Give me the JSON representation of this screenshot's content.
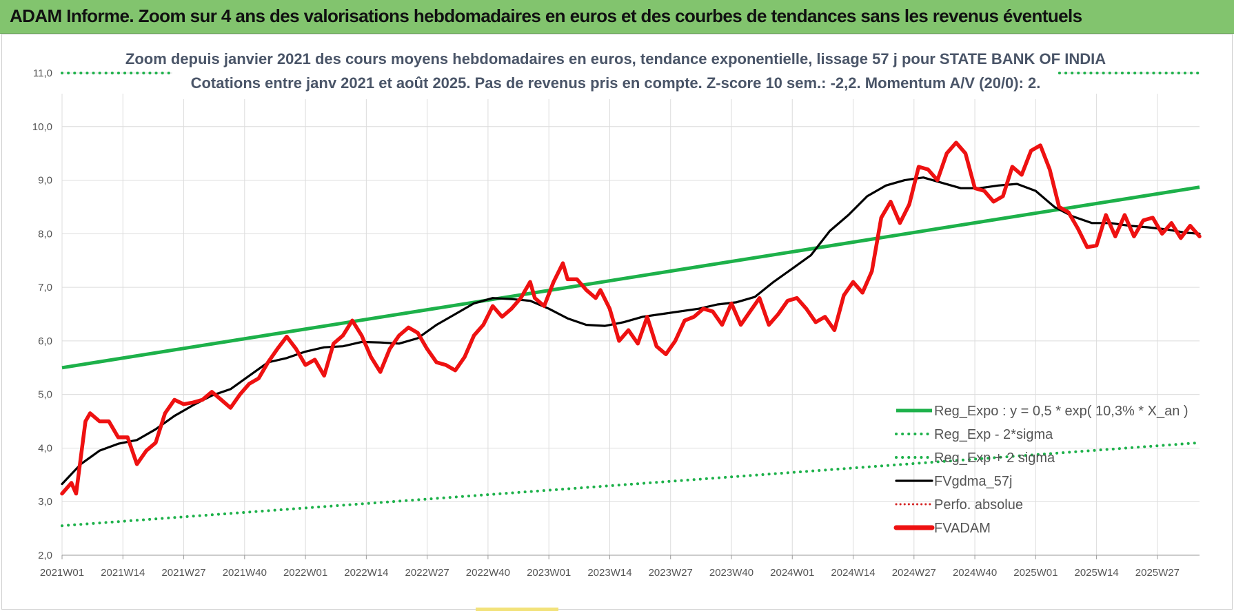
{
  "header": {
    "title": "ADAM Informe. Zoom sur 4 ans des valorisations hebdomadaires en euros et des courbes de tendances sans les revenus éventuels"
  },
  "colors": {
    "header_bg": "#82c46e",
    "reg_expo": "#1db14a",
    "fvgdma": "#000000",
    "fvadam": "#ee1111",
    "perfo": "#d42020"
  },
  "chart_data": {
    "type": "line",
    "title": "Zoom depuis janvier 2021 des cours moyens hebdomadaires en euros, tendance exponentielle, lissage 57 j pour STATE BANK OF INDIA",
    "subtitle": "Cotations entre janv 2021 et août 2025.  Pas de revenus pris en compte. Z-score 10 sem.: -2,2. Momentum A/V (20/0): 2.",
    "xlabel": "",
    "ylabel": "",
    "ylim": [
      2.0,
      11.0
    ],
    "yticks": [
      "2,0",
      "3,0",
      "4,0",
      "5,0",
      "6,0",
      "7,0",
      "8,0",
      "9,0",
      "10,0",
      "11,0"
    ],
    "x_tick_labels": [
      "2021W01",
      "2021W14",
      "2021W27",
      "2021W40",
      "2022W01",
      "2022W14",
      "2022W27",
      "2022W40",
      "2023W01",
      "2023W14",
      "2023W27",
      "2023W40",
      "2024W01",
      "2024W14",
      "2024W27",
      "2024W40",
      "2025W01",
      "2025W14",
      "2025W27"
    ],
    "grid": true,
    "legend_position": "bottom-right",
    "series": [
      {
        "name": "Reg_Expo : y = 0,5 * exp( 10,3% *  X_an )",
        "style": "solid-thick",
        "points": [
          [
            0,
            5.5
          ],
          [
            243,
            8.87
          ]
        ]
      },
      {
        "name": "Reg_Exp - 2*sigma",
        "style": "dotted",
        "points": [
          [
            0,
            2.55
          ],
          [
            243,
            4.1
          ]
        ]
      },
      {
        "name": "Reg_Exp + 2 sigma",
        "style": "dotted",
        "points": [
          [
            0,
            11.0
          ],
          [
            243,
            11.0
          ]
        ]
      },
      {
        "name": "FVgdma_57j",
        "style": "solid",
        "points": [
          [
            0,
            3.33
          ],
          [
            4,
            3.7
          ],
          [
            8,
            3.95
          ],
          [
            12,
            4.08
          ],
          [
            16,
            4.15
          ],
          [
            20,
            4.35
          ],
          [
            24,
            4.6
          ],
          [
            28,
            4.8
          ],
          [
            32,
            4.98
          ],
          [
            36,
            5.1
          ],
          [
            40,
            5.35
          ],
          [
            44,
            5.6
          ],
          [
            48,
            5.68
          ],
          [
            52,
            5.8
          ],
          [
            56,
            5.88
          ],
          [
            60,
            5.9
          ],
          [
            64,
            5.98
          ],
          [
            68,
            5.97
          ],
          [
            72,
            5.95
          ],
          [
            76,
            6.05
          ],
          [
            80,
            6.3
          ],
          [
            84,
            6.5
          ],
          [
            88,
            6.7
          ],
          [
            92,
            6.8
          ],
          [
            96,
            6.78
          ],
          [
            100,
            6.75
          ],
          [
            104,
            6.6
          ],
          [
            108,
            6.42
          ],
          [
            112,
            6.3
          ],
          [
            116,
            6.28
          ],
          [
            120,
            6.35
          ],
          [
            124,
            6.45
          ],
          [
            128,
            6.5
          ],
          [
            132,
            6.55
          ],
          [
            136,
            6.6
          ],
          [
            140,
            6.68
          ],
          [
            144,
            6.72
          ],
          [
            148,
            6.82
          ],
          [
            152,
            7.1
          ],
          [
            156,
            7.35
          ],
          [
            160,
            7.6
          ],
          [
            164,
            8.05
          ],
          [
            168,
            8.35
          ],
          [
            172,
            8.7
          ],
          [
            176,
            8.9
          ],
          [
            180,
            9.0
          ],
          [
            184,
            9.05
          ],
          [
            188,
            8.95
          ],
          [
            192,
            8.85
          ],
          [
            196,
            8.85
          ],
          [
            200,
            8.9
          ],
          [
            204,
            8.93
          ],
          [
            208,
            8.8
          ],
          [
            212,
            8.5
          ],
          [
            216,
            8.32
          ],
          [
            220,
            8.2
          ],
          [
            224,
            8.2
          ],
          [
            228,
            8.15
          ],
          [
            232,
            8.12
          ],
          [
            236,
            8.08
          ],
          [
            240,
            8.02
          ],
          [
            243,
            8.0
          ]
        ]
      },
      {
        "name": "Perfo. absolue",
        "style": "dotted",
        "points": []
      },
      {
        "name": "FVADAM",
        "style": "solid-thick",
        "points": [
          [
            0,
            3.15
          ],
          [
            2,
            3.35
          ],
          [
            3,
            3.15
          ],
          [
            5,
            4.5
          ],
          [
            6,
            4.65
          ],
          [
            8,
            4.5
          ],
          [
            10,
            4.5
          ],
          [
            12,
            4.2
          ],
          [
            14,
            4.2
          ],
          [
            16,
            3.7
          ],
          [
            18,
            3.95
          ],
          [
            20,
            4.1
          ],
          [
            22,
            4.65
          ],
          [
            24,
            4.9
          ],
          [
            26,
            4.82
          ],
          [
            28,
            4.85
          ],
          [
            30,
            4.9
          ],
          [
            32,
            5.05
          ],
          [
            34,
            4.9
          ],
          [
            36,
            4.75
          ],
          [
            38,
            5.0
          ],
          [
            40,
            5.2
          ],
          [
            42,
            5.3
          ],
          [
            44,
            5.6
          ],
          [
            46,
            5.85
          ],
          [
            48,
            6.08
          ],
          [
            50,
            5.85
          ],
          [
            52,
            5.55
          ],
          [
            54,
            5.65
          ],
          [
            56,
            5.35
          ],
          [
            58,
            5.95
          ],
          [
            60,
            6.1
          ],
          [
            62,
            6.38
          ],
          [
            64,
            6.1
          ],
          [
            66,
            5.7
          ],
          [
            68,
            5.42
          ],
          [
            70,
            5.85
          ],
          [
            72,
            6.1
          ],
          [
            74,
            6.25
          ],
          [
            76,
            6.15
          ],
          [
            78,
            5.85
          ],
          [
            80,
            5.6
          ],
          [
            82,
            5.55
          ],
          [
            84,
            5.45
          ],
          [
            86,
            5.7
          ],
          [
            88,
            6.1
          ],
          [
            90,
            6.3
          ],
          [
            92,
            6.65
          ],
          [
            94,
            6.45
          ],
          [
            96,
            6.6
          ],
          [
            98,
            6.8
          ],
          [
            100,
            7.1
          ],
          [
            101,
            6.8
          ],
          [
            103,
            6.65
          ],
          [
            105,
            7.1
          ],
          [
            107,
            7.45
          ],
          [
            108,
            7.15
          ],
          [
            110,
            7.15
          ],
          [
            112,
            6.95
          ],
          [
            114,
            6.8
          ],
          [
            115,
            6.95
          ],
          [
            117,
            6.6
          ],
          [
            119,
            6.0
          ],
          [
            121,
            6.2
          ],
          [
            123,
            5.95
          ],
          [
            125,
            6.45
          ],
          [
            127,
            5.9
          ],
          [
            129,
            5.75
          ],
          [
            131,
            6.0
          ],
          [
            133,
            6.38
          ],
          [
            135,
            6.45
          ],
          [
            137,
            6.6
          ],
          [
            139,
            6.55
          ],
          [
            141,
            6.3
          ],
          [
            143,
            6.7
          ],
          [
            145,
            6.3
          ],
          [
            147,
            6.55
          ],
          [
            149,
            6.8
          ],
          [
            151,
            6.3
          ],
          [
            153,
            6.5
          ],
          [
            155,
            6.75
          ],
          [
            157,
            6.8
          ],
          [
            159,
            6.6
          ],
          [
            161,
            6.35
          ],
          [
            163,
            6.45
          ],
          [
            165,
            6.2
          ],
          [
            167,
            6.85
          ],
          [
            169,
            7.1
          ],
          [
            171,
            6.9
          ],
          [
            173,
            7.3
          ],
          [
            175,
            8.3
          ],
          [
            177,
            8.6
          ],
          [
            179,
            8.2
          ],
          [
            181,
            8.55
          ],
          [
            183,
            9.25
          ],
          [
            185,
            9.2
          ],
          [
            187,
            9.0
          ],
          [
            189,
            9.5
          ],
          [
            191,
            9.7
          ],
          [
            193,
            9.5
          ],
          [
            195,
            8.85
          ],
          [
            197,
            8.8
          ],
          [
            199,
            8.6
          ],
          [
            201,
            8.7
          ],
          [
            203,
            9.25
          ],
          [
            205,
            9.1
          ],
          [
            207,
            9.55
          ],
          [
            209,
            9.65
          ],
          [
            211,
            9.2
          ],
          [
            213,
            8.5
          ],
          [
            215,
            8.4
          ],
          [
            217,
            8.1
          ],
          [
            219,
            7.75
          ],
          [
            221,
            7.78
          ],
          [
            223,
            8.35
          ],
          [
            225,
            7.95
          ],
          [
            227,
            8.35
          ],
          [
            229,
            7.95
          ],
          [
            231,
            8.25
          ],
          [
            233,
            8.3
          ],
          [
            235,
            8.0
          ],
          [
            237,
            8.2
          ],
          [
            239,
            7.92
          ],
          [
            241,
            8.15
          ],
          [
            243,
            7.95
          ]
        ]
      }
    ]
  }
}
